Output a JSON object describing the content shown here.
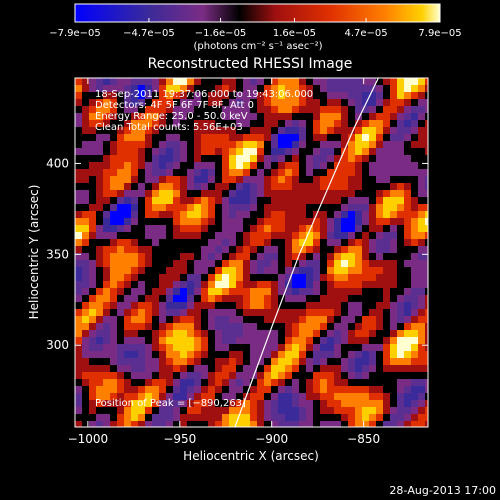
{
  "chart_data": {
    "type": "heatmap",
    "title": "Reconstructed RHESSI Image",
    "xlabel": "Heliocentric X (arcsec)",
    "ylabel": "Heliocentric Y (arcsec)",
    "xlim": [
      -1007,
      -815
    ],
    "ylim": [
      255,
      447
    ],
    "x_ticks": [
      -1000,
      -950,
      -900,
      -850
    ],
    "x_tick_labels": [
      "−1000",
      "−950",
      "−900",
      "−850"
    ],
    "y_ticks": [
      300,
      350,
      400
    ],
    "y_tick_labels": [
      "300",
      "350",
      "400"
    ],
    "colorbar": {
      "min": -7.9e-05,
      "max": 7.9e-05,
      "tick_values": [
        -7.9e-05,
        -4.7e-05,
        -1.6e-05,
        1.6e-05,
        4.7e-05,
        7.9e-05
      ],
      "tick_labels": [
        "−7.9e−05",
        "−4.7e−05",
        "−1.6e−05",
        "1.6e−05",
        "4.7e−05",
        "7.9e−05"
      ],
      "units_label": "(photons cm⁻² s⁻¹ asec⁻²)"
    },
    "annotations": [
      "18‑Sep‑2011 19:37:06.000 to 19:43:06.000",
      "Detectors: 4F 5F 6F 7F 8F, Att 0",
      "Energy Range: 25.0 ‑ 50.0 keV",
      "Clean     Total counts: 5.56E+03"
    ],
    "peak_label": "Position of Peak = [−890,263]",
    "peak_position": [
      -890,
      263
    ],
    "limb_curve": [
      [
        -920,
        255
      ],
      [
        -900,
        310
      ],
      [
        -885,
        350
      ],
      [
        -870,
        385
      ],
      [
        -855,
        420
      ],
      [
        -842,
        447
      ]
    ],
    "colormap": [
      "#0000ff",
      "#3a2a9a",
      "#5a2f91",
      "#7a2c84",
      "#000000",
      "#a01010",
      "#e03000",
      "#ff8000",
      "#ffd000",
      "#ffffd0"
    ],
    "grid": false
  },
  "footer": {
    "timestamp": "28‑Aug‑2013 17:00"
  }
}
